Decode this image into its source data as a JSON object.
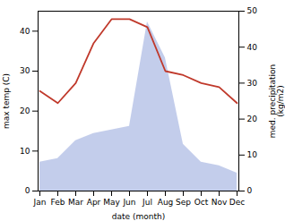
{
  "chart_data": {
    "type": "line",
    "categories": [
      "Jan",
      "Feb",
      "Mar",
      "Apr",
      "May",
      "Jun",
      "Jul",
      "Aug",
      "Sep",
      "Oct",
      "Nov",
      "Dec"
    ],
    "xlabel": "date (month)",
    "ylabel": "max temp (C)",
    "y2label": "med. precipitation\n(kg/m2)",
    "ylim": [
      0,
      45
    ],
    "yticks": [
      0,
      10,
      20,
      30,
      40
    ],
    "y2lim": [
      0,
      50
    ],
    "y2ticks": [
      0,
      10,
      20,
      30,
      40,
      50
    ],
    "grid": false,
    "series": [
      {
        "type": "area",
        "axis": "y2",
        "color": "#b8c4e8",
        "values": [
          8,
          9,
          14,
          16,
          17,
          18,
          47,
          37,
          13,
          8,
          7,
          5
        ]
      },
      {
        "type": "line",
        "color": "#c0392b",
        "values": [
          25,
          22,
          27,
          37,
          43,
          43,
          41,
          30,
          29,
          27,
          26,
          22
        ]
      }
    ]
  }
}
